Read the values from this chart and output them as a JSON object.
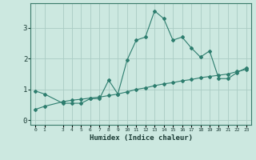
{
  "xlabel": "Humidex (Indice chaleur)",
  "background_color": "#cce8e0",
  "line_color": "#2d7d6e",
  "grid_color": "#aaccc4",
  "x_ticks": [
    0,
    1,
    3,
    4,
    5,
    6,
    7,
    8,
    9,
    10,
    11,
    12,
    13,
    14,
    15,
    16,
    17,
    18,
    19,
    20,
    21,
    22,
    23
  ],
  "ylim": [
    -0.15,
    3.8
  ],
  "xlim": [
    -0.5,
    23.5
  ],
  "series1_x": [
    0,
    1,
    3,
    4,
    5,
    6,
    7,
    8,
    9,
    10,
    11,
    12,
    13,
    14,
    15,
    16,
    17,
    18,
    19,
    20,
    21,
    22,
    23
  ],
  "series1_y": [
    0.95,
    0.85,
    0.55,
    0.55,
    0.55,
    0.7,
    0.7,
    1.3,
    0.85,
    1.95,
    2.6,
    2.7,
    3.55,
    3.3,
    2.6,
    2.7,
    2.35,
    2.05,
    2.25,
    1.35,
    1.35,
    1.55,
    1.7
  ],
  "series2_x": [
    0,
    1,
    3,
    4,
    5,
    6,
    7,
    8,
    9,
    10,
    11,
    12,
    13,
    14,
    15,
    16,
    17,
    18,
    19,
    20,
    21,
    22,
    23
  ],
  "series2_y": [
    0.35,
    0.45,
    0.6,
    0.65,
    0.68,
    0.72,
    0.75,
    0.8,
    0.85,
    0.92,
    1.0,
    1.05,
    1.12,
    1.18,
    1.22,
    1.28,
    1.32,
    1.38,
    1.42,
    1.46,
    1.5,
    1.58,
    1.65
  ]
}
